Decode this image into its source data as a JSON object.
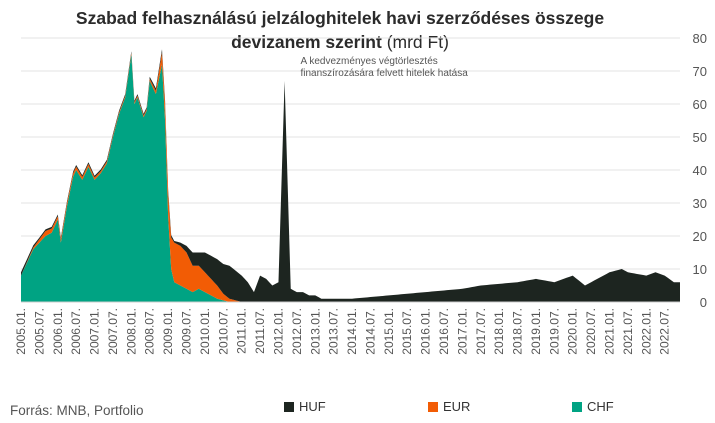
{
  "title": {
    "line1": "Szabad felhasználású jelzáloghitelek havi szerződéses összege",
    "line2_bold": "devizanem szerint",
    "line2_unit": "(mrd Ft)"
  },
  "source": "Forrás: MNB, Portfolio",
  "colors": {
    "HUF": "#1d2520",
    "EUR": "#f25c05",
    "CHF": "#00a383"
  },
  "chart_data": {
    "type": "area",
    "stacked": true,
    "ylim": [
      0,
      80
    ],
    "yticks": [
      0,
      10,
      20,
      30,
      40,
      50,
      60,
      70,
      80
    ],
    "y_axis_side": "right",
    "grid": true,
    "legend_position": "bottom",
    "x_tick_labels": [
      "2005.01.",
      "2005.07.",
      "2006.01.",
      "2006.07.",
      "2007.01.",
      "2007.07.",
      "2008.01.",
      "2008.07.",
      "2009.01.",
      "2009.07.",
      "2010.01.",
      "2010.07.",
      "2011.01.",
      "2011.07.",
      "2012.01.",
      "2012.07.",
      "2013.01.",
      "2013.07.",
      "2014.01.",
      "2014.07.",
      "2015.01.",
      "2015.07.",
      "2016.01.",
      "2016.07.",
      "2017.01.",
      "2017.07.",
      "2018.01.",
      "2018.07.",
      "2019.01.",
      "2019.07.",
      "2020.01.",
      "2020.07.",
      "2021.01.",
      "2021.07.",
      "2022.01.",
      "2022.07."
    ],
    "x_range": [
      "2005.01.",
      "2022.12."
    ],
    "annotation": {
      "lines": [
        "A kedvezményes végtörlesztés",
        "finanszírozására felvett hitelek hatása"
      ],
      "date": "2012.01."
    },
    "series": [
      {
        "name": "CHF",
        "points": [
          [
            "2005.01.",
            8
          ],
          [
            "2005.03.",
            12
          ],
          [
            "2005.05.",
            16
          ],
          [
            "2005.07.",
            18
          ],
          [
            "2005.09.",
            20
          ],
          [
            "2005.11.",
            21
          ],
          [
            "2006.01.",
            25
          ],
          [
            "2006.02.",
            18
          ],
          [
            "2006.04.",
            29
          ],
          [
            "2006.06.",
            38
          ],
          [
            "2006.07.",
            40
          ],
          [
            "2006.09.",
            37
          ],
          [
            "2006.11.",
            41
          ],
          [
            "2007.01.",
            37
          ],
          [
            "2007.03.",
            39
          ],
          [
            "2007.05.",
            42
          ],
          [
            "2007.07.",
            50
          ],
          [
            "2007.09.",
            57
          ],
          [
            "2007.11.",
            62
          ],
          [
            "2008.01.",
            75
          ],
          [
            "2008.02.",
            60
          ],
          [
            "2008.03.",
            62
          ],
          [
            "2008.05.",
            56
          ],
          [
            "2008.06.",
            58
          ],
          [
            "2008.07.",
            67
          ],
          [
            "2008.09.",
            63
          ],
          [
            "2008.11.",
            72
          ],
          [
            "2008.12.",
            55
          ],
          [
            "2009.01.",
            26
          ],
          [
            "2009.02.",
            10
          ],
          [
            "2009.03.",
            6
          ],
          [
            "2009.05.",
            5
          ],
          [
            "2009.07.",
            4
          ],
          [
            "2009.09.",
            3
          ],
          [
            "2009.11.",
            4
          ],
          [
            "2010.01.",
            3
          ],
          [
            "2010.03.",
            2
          ],
          [
            "2010.05.",
            1
          ],
          [
            "2010.07.",
            0.5
          ],
          [
            "2010.09.",
            0
          ],
          [
            "2022.12.",
            0
          ]
        ]
      },
      {
        "name": "EUR",
        "points": [
          [
            "2005.01.",
            0
          ],
          [
            "2005.05.",
            0.5
          ],
          [
            "2005.07.",
            1
          ],
          [
            "2005.09.",
            1.5
          ],
          [
            "2006.01.",
            1
          ],
          [
            "2006.07.",
            1
          ],
          [
            "2007.07.",
            0.5
          ],
          [
            "2008.06.",
            0.5
          ],
          [
            "2008.09.",
            1
          ],
          [
            "2008.12.",
            5
          ],
          [
            "2009.01.",
            7
          ],
          [
            "2009.03.",
            12
          ],
          [
            "2009.05.",
            12
          ],
          [
            "2009.07.",
            11
          ],
          [
            "2009.09.",
            8
          ],
          [
            "2009.11.",
            7
          ],
          [
            "2010.01.",
            6
          ],
          [
            "2010.03.",
            5
          ],
          [
            "2010.05.",
            4
          ],
          [
            "2010.07.",
            2
          ],
          [
            "2010.09.",
            1
          ],
          [
            "2010.11.",
            0.5
          ],
          [
            "2011.01.",
            0
          ],
          [
            "2022.12.",
            0
          ]
        ]
      },
      {
        "name": "HUF",
        "points": [
          [
            "2005.01.",
            1
          ],
          [
            "2005.07.",
            0.5
          ],
          [
            "2008.06.",
            0.5
          ],
          [
            "2008.12.",
            1
          ],
          [
            "2009.01.",
            1
          ],
          [
            "2009.03.",
            0.5
          ],
          [
            "2009.05.",
            1
          ],
          [
            "2009.07.",
            2
          ],
          [
            "2009.09.",
            4
          ],
          [
            "2009.11.",
            4
          ],
          [
            "2010.01.",
            6
          ],
          [
            "2010.03.",
            7
          ],
          [
            "2010.05.",
            8
          ],
          [
            "2010.07.",
            9
          ],
          [
            "2010.09.",
            10
          ],
          [
            "2010.11.",
            9
          ],
          [
            "2011.01.",
            8
          ],
          [
            "2011.03.",
            6
          ],
          [
            "2011.05.",
            3
          ],
          [
            "2011.07.",
            8
          ],
          [
            "2011.09.",
            7
          ],
          [
            "2011.11.",
            5
          ],
          [
            "2012.01.",
            6
          ],
          [
            "2012.03.",
            67
          ],
          [
            "2012.05.",
            4
          ],
          [
            "2012.07.",
            3
          ],
          [
            "2012.09.",
            3
          ],
          [
            "2012.11.",
            2
          ],
          [
            "2013.01.",
            2
          ],
          [
            "2013.03.",
            1
          ],
          [
            "2013.07.",
            1
          ],
          [
            "2014.01.",
            1
          ],
          [
            "2014.07.",
            1.5
          ],
          [
            "2015.01.",
            2
          ],
          [
            "2015.07.",
            2.5
          ],
          [
            "2016.01.",
            3
          ],
          [
            "2016.07.",
            3.5
          ],
          [
            "2017.01.",
            4
          ],
          [
            "2017.07.",
            5
          ],
          [
            "2018.01.",
            5.5
          ],
          [
            "2018.07.",
            6
          ],
          [
            "2019.01.",
            7
          ],
          [
            "2019.07.",
            6
          ],
          [
            "2020.01.",
            8
          ],
          [
            "2020.05.",
            5
          ],
          [
            "2020.07.",
            6
          ],
          [
            "2021.01.",
            9
          ],
          [
            "2021.05.",
            10
          ],
          [
            "2021.07.",
            9
          ],
          [
            "2022.01.",
            8
          ],
          [
            "2022.04.",
            9
          ],
          [
            "2022.07.",
            8
          ],
          [
            "2022.10.",
            6
          ],
          [
            "2022.12.",
            6
          ]
        ]
      }
    ],
    "legend": [
      "HUF",
      "EUR",
      "CHF"
    ]
  }
}
